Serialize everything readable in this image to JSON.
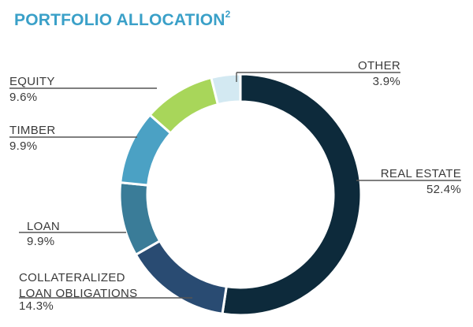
{
  "title": {
    "main": "PORTFOLIO ALLOCATION",
    "superscript": "2"
  },
  "chart_data": {
    "type": "pie",
    "title": "PORTFOLIO ALLOCATION",
    "style": "donut",
    "slices": [
      {
        "label_lines": [
          "REAL ESTATE"
        ],
        "value_label": "52.4%",
        "value": 52.4,
        "color": "#0d2a3b"
      },
      {
        "label_lines": [
          "COLLATERALIZED",
          "LOAN OBLIGATIONS"
        ],
        "value_label": "14.3%",
        "value": 14.3,
        "color": "#294b72"
      },
      {
        "label_lines": [
          "LOAN"
        ],
        "value_label": "9.9%",
        "value": 9.9,
        "color": "#3a7c98"
      },
      {
        "label_lines": [
          "TIMBER"
        ],
        "value_label": "9.9%",
        "value": 9.9,
        "color": "#4ba1c4"
      },
      {
        "label_lines": [
          "EQUITY"
        ],
        "value_label": "9.6%",
        "value": 9.6,
        "color": "#a8d65a"
      },
      {
        "label_lines": [
          "OTHER"
        ],
        "value_label": "3.9%",
        "value": 3.9,
        "color": "#d3e9f2"
      }
    ]
  }
}
